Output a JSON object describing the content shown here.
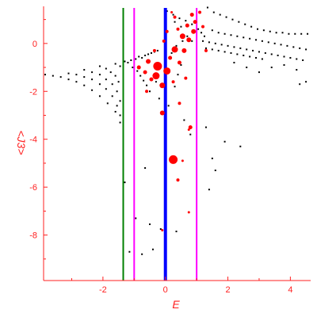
{
  "chart_data": {
    "type": "scatter",
    "xlabel": "E",
    "ylabel": "<J3>",
    "xlim": [
      -3.9,
      4.65
    ],
    "ylim": [
      -9.9,
      1.55
    ],
    "xticks": [
      -2,
      0,
      2,
      4
    ],
    "yticks": [
      0,
      -2,
      -4,
      -6,
      -8
    ],
    "xtick_labels": [
      "-2",
      "0",
      "2",
      "4"
    ],
    "ytick_labels": [
      "0",
      "-2",
      "-4",
      "-6",
      "-8"
    ],
    "grid": false,
    "axis_color": "#ff2020",
    "vertical_lines": [
      {
        "x": -1.35,
        "color": "#008000"
      },
      {
        "x": -1.0,
        "color": "#ff00ff"
      },
      {
        "x": 0.0,
        "color": "#0000ff"
      },
      {
        "x": 1.0,
        "color": "#ff00ff"
      }
    ],
    "black_series": {
      "color": "#000000",
      "points": [
        [
          -3.85,
          -1.3
        ],
        [
          -3.6,
          -1.35
        ],
        [
          -3.35,
          -1.4
        ],
        [
          -3.1,
          -1.5
        ],
        [
          -2.85,
          -1.6
        ],
        [
          -2.6,
          -1.75
        ],
        [
          -2.35,
          -1.95
        ],
        [
          -2.1,
          -2.2
        ],
        [
          -1.85,
          -2.5
        ],
        [
          -1.6,
          -2.85
        ],
        [
          -1.45,
          -3.3
        ],
        [
          -3.1,
          -1.25
        ],
        [
          -2.85,
          -1.3
        ],
        [
          -2.6,
          -1.4
        ],
        [
          -2.35,
          -1.5
        ],
        [
          -2.1,
          -1.7
        ],
        [
          -1.9,
          -1.9
        ],
        [
          -1.7,
          -2.2
        ],
        [
          -1.55,
          -2.6
        ],
        [
          -1.45,
          -3.0
        ],
        [
          -2.6,
          -1.1
        ],
        [
          -2.35,
          -1.2
        ],
        [
          -2.1,
          -1.3
        ],
        [
          -1.9,
          -1.5
        ],
        [
          -1.7,
          -1.7
        ],
        [
          -1.55,
          -2.0
        ],
        [
          -1.45,
          -2.4
        ],
        [
          -2.1,
          -0.95
        ],
        [
          -1.9,
          -1.05
        ],
        [
          -1.75,
          -1.2
        ],
        [
          -1.6,
          -1.35
        ],
        [
          -1.5,
          -1.6
        ],
        [
          -1.6,
          -0.85
        ],
        [
          -1.45,
          -0.95
        ],
        [
          -1.3,
          -0.75
        ],
        [
          -1.2,
          -0.8
        ],
        [
          -1.1,
          -0.7
        ],
        [
          -0.95,
          -0.65
        ],
        [
          -0.85,
          -0.55
        ],
        [
          -0.75,
          -0.6
        ],
        [
          -0.65,
          -0.5
        ],
        [
          -0.55,
          -0.45
        ],
        [
          -0.45,
          -0.4
        ],
        [
          -0.35,
          -0.35
        ],
        [
          -0.25,
          -0.3
        ],
        [
          -1.05,
          -1.0
        ],
        [
          -0.9,
          -1.15
        ],
        [
          -0.8,
          -1.35
        ],
        [
          -0.7,
          -1.55
        ],
        [
          -0.6,
          -1.75
        ],
        [
          -0.5,
          -2.0
        ],
        [
          0.05,
          1.35
        ],
        [
          0.25,
          1.2
        ],
        [
          0.45,
          1.05
        ],
        [
          0.65,
          0.95
        ],
        [
          0.85,
          0.8
        ],
        [
          1.05,
          0.6
        ],
        [
          1.15,
          0.45
        ],
        [
          1.25,
          0.3
        ],
        [
          1.35,
          1.5
        ],
        [
          1.55,
          1.3
        ],
        [
          1.75,
          1.2
        ],
        [
          1.95,
          1.1
        ],
        [
          2.15,
          1.0
        ],
        [
          2.35,
          0.9
        ],
        [
          2.55,
          0.8
        ],
        [
          2.75,
          0.7
        ],
        [
          2.95,
          0.6
        ],
        [
          3.15,
          0.55
        ],
        [
          3.35,
          0.5
        ],
        [
          3.55,
          0.45
        ],
        [
          3.75,
          0.45
        ],
        [
          3.95,
          0.4
        ],
        [
          4.15,
          0.4
        ],
        [
          4.35,
          0.4
        ],
        [
          4.55,
          0.4
        ],
        [
          1.2,
          0.1
        ],
        [
          1.4,
          0.05
        ],
        [
          1.6,
          0.0
        ],
        [
          1.8,
          -0.05
        ],
        [
          2.0,
          -0.1
        ],
        [
          2.2,
          -0.15
        ],
        [
          2.4,
          -0.2
        ],
        [
          2.6,
          -0.25
        ],
        [
          2.8,
          -0.3
        ],
        [
          3.0,
          -0.35
        ],
        [
          3.2,
          -0.4
        ],
        [
          3.4,
          -0.45
        ],
        [
          3.6,
          -0.5
        ],
        [
          3.8,
          -0.55
        ],
        [
          4.0,
          -0.6
        ],
        [
          4.2,
          -0.65
        ],
        [
          4.4,
          -0.7
        ],
        [
          1.3,
          -0.2
        ],
        [
          1.5,
          -0.25
        ],
        [
          1.7,
          -0.3
        ],
        [
          1.9,
          -0.35
        ],
        [
          2.1,
          -0.4
        ],
        [
          2.3,
          -0.45
        ],
        [
          2.5,
          -0.5
        ],
        [
          2.7,
          -0.55
        ],
        [
          2.9,
          -0.6
        ],
        [
          3.1,
          -0.65
        ],
        [
          1.5,
          0.55
        ],
        [
          1.7,
          0.45
        ],
        [
          1.9,
          0.4
        ],
        [
          2.1,
          0.35
        ],
        [
          2.3,
          0.3
        ],
        [
          2.5,
          0.25
        ],
        [
          2.7,
          0.2
        ],
        [
          2.9,
          0.15
        ],
        [
          3.1,
          0.1
        ],
        [
          3.3,
          0.05
        ],
        [
          3.5,
          0.0
        ],
        [
          3.7,
          -0.05
        ],
        [
          3.9,
          -0.1
        ],
        [
          4.1,
          -0.15
        ],
        [
          4.3,
          -0.2
        ],
        [
          4.5,
          -0.25
        ],
        [
          2.2,
          -0.8
        ],
        [
          2.6,
          -1.0
        ],
        [
          3.0,
          -1.2
        ],
        [
          3.4,
          -1.0
        ],
        [
          3.8,
          -0.9
        ],
        [
          4.2,
          -1.1
        ],
        [
          4.5,
          -1.6
        ],
        [
          4.3,
          -1.7
        ],
        [
          0.6,
          -3.2
        ],
        [
          0.8,
          -3.8
        ],
        [
          1.3,
          -3.5
        ],
        [
          1.9,
          -4.1
        ],
        [
          2.4,
          -4.3
        ],
        [
          1.5,
          -4.8
        ],
        [
          1.6,
          -5.3
        ],
        [
          1.4,
          -6.1
        ],
        [
          -1.3,
          -5.8
        ],
        [
          -0.65,
          -5.2
        ],
        [
          -0.95,
          -7.3
        ],
        [
          -0.5,
          -7.55
        ],
        [
          -0.15,
          -7.75
        ],
        [
          0.35,
          -7.85
        ],
        [
          -1.15,
          -8.7
        ],
        [
          -0.75,
          -8.8
        ],
        [
          -0.4,
          -8.6
        ],
        [
          -0.3,
          -1.6
        ],
        [
          -0.2,
          -2.3
        ],
        [
          0.1,
          -2.6
        ],
        [
          0.3,
          -1.8
        ],
        [
          0.4,
          -1.3
        ],
        [
          0.5,
          -0.9
        ],
        [
          0.2,
          -0.4
        ],
        [
          0.35,
          -0.1
        ],
        [
          0.55,
          0.1
        ],
        [
          0.7,
          0.3
        ],
        [
          0.85,
          0.1
        ],
        [
          0.95,
          0.5
        ],
        [
          0.3,
          0.9
        ],
        [
          0.5,
          0.7
        ]
      ]
    },
    "red_series": {
      "color": "#ff0000",
      "points": [
        {
          "x": -0.25,
          "y": -0.95,
          "size": 10
        },
        {
          "x": 0.05,
          "y": -1.15,
          "size": 8
        },
        {
          "x": -0.3,
          "y": -1.35,
          "size": 8
        },
        {
          "x": -0.1,
          "y": -1.75,
          "size": 6
        },
        {
          "x": 0.3,
          "y": -0.25,
          "size": 7
        },
        {
          "x": 0.55,
          "y": 0.3,
          "size": 6
        },
        {
          "x": 0.75,
          "y": 0.15,
          "size": 5
        },
        {
          "x": 0.9,
          "y": 0.5,
          "size": 5
        },
        {
          "x": 0.6,
          "y": -0.3,
          "size": 5
        },
        {
          "x": -0.55,
          "y": -0.75,
          "size": 5
        },
        {
          "x": -0.65,
          "y": -1.2,
          "size": 4
        },
        {
          "x": -0.85,
          "y": -1.0,
          "size": 4
        },
        {
          "x": -0.45,
          "y": -1.5,
          "size": 4
        },
        {
          "x": 0.15,
          "y": -0.6,
          "size": 4
        },
        {
          "x": 0.45,
          "y": -0.8,
          "size": 4
        },
        {
          "x": 0.85,
          "y": 1.2,
          "size": 4
        },
        {
          "x": 0.95,
          "y": 0.9,
          "size": 4
        },
        {
          "x": 0.7,
          "y": 0.75,
          "size": 4
        },
        {
          "x": 0.4,
          "y": 0.6,
          "size": 3
        },
        {
          "x": 0.3,
          "y": 1.1,
          "size": 3
        },
        {
          "x": 0.05,
          "y": 0.5,
          "size": 3
        },
        {
          "x": -0.05,
          "y": 0.1,
          "size": 3
        },
        {
          "x": -0.35,
          "y": -0.3,
          "size": 3
        },
        {
          "x": -0.6,
          "y": -2.0,
          "size": 3
        },
        {
          "x": 0.45,
          "y": -2.5,
          "size": 3
        },
        {
          "x": 0.65,
          "y": -1.45,
          "size": 3
        },
        {
          "x": 0.25,
          "y": -1.6,
          "size": 3
        },
        {
          "x": -0.1,
          "y": -2.9,
          "size": 5
        },
        {
          "x": 0.8,
          "y": -3.5,
          "size": 4
        },
        {
          "x": 0.25,
          "y": -4.85,
          "size": 10
        },
        {
          "x": 0.4,
          "y": -5.7,
          "size": 3
        },
        {
          "x": 0.55,
          "y": -4.9,
          "size": 2
        },
        {
          "x": 0.75,
          "y": -7.05,
          "size": 2
        },
        {
          "x": 0.75,
          "y": -3.6,
          "size": 2
        },
        {
          "x": -0.1,
          "y": -7.8,
          "size": 2
        },
        {
          "x": 1.1,
          "y": 1.3,
          "size": 3
        },
        {
          "x": 1.2,
          "y": 0.7,
          "size": 3
        },
        {
          "x": 1.3,
          "y": -0.3,
          "size": 3
        },
        {
          "x": 0.2,
          "y": 1.3,
          "size": 2
        }
      ]
    }
  }
}
